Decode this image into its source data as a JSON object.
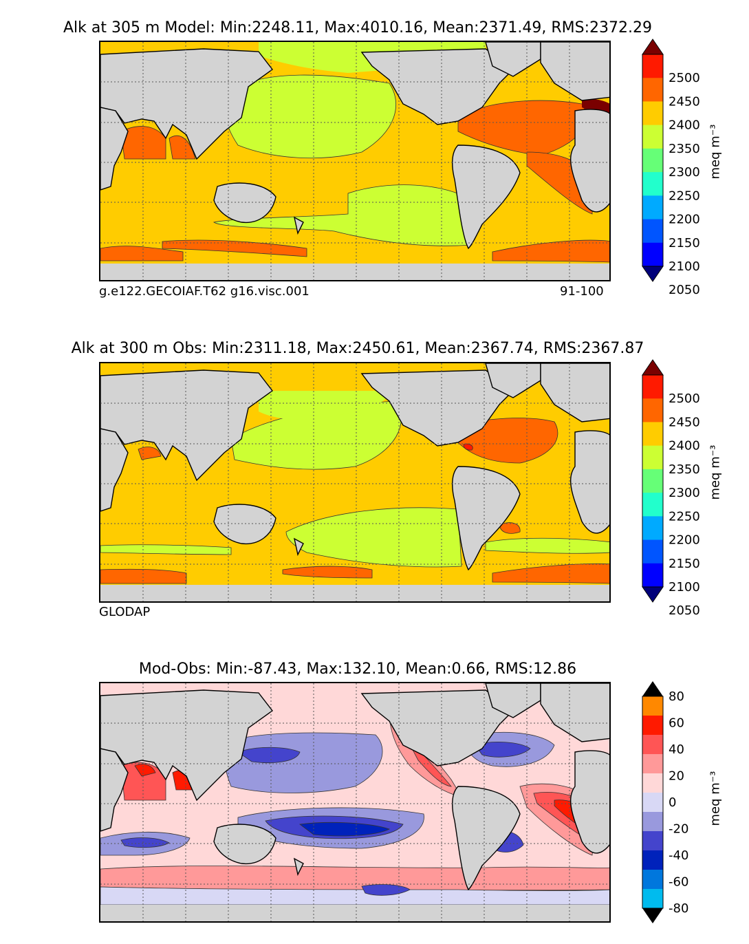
{
  "chart_data": [
    {
      "type": "heatmap",
      "title": "Alk at 305 m Model: Min:2248.11, Max:4010.16, Mean:2371.49, RMS:2372.29",
      "left_note": "g.e122.GECOIAF.T62 g16.visc.001",
      "right_note": "91-100",
      "colorbar": {
        "ticks": [
          "2500",
          "2450",
          "2400",
          "2350",
          "2300",
          "2250",
          "2200",
          "2150",
          "2100",
          "2050"
        ],
        "unit": "meq m⁻³",
        "range": [
          2000,
          2550
        ],
        "colors": [
          "#00007a",
          "#0000ff",
          "#0055ff",
          "#00aaff",
          "#22ffcc",
          "#66ff77",
          "#ccff33",
          "#ffcc00",
          "#ff6600",
          "#ff1a00",
          "#7a0000"
        ]
      },
      "regions": [
        {
          "name": "background",
          "value": 2350
        },
        {
          "name": "north-pacific",
          "value": 2320
        },
        {
          "name": "north-atlantic",
          "value": 2400
        },
        {
          "name": "arabian-sea",
          "value": 2400
        },
        {
          "name": "south-pacific",
          "value": 2320
        },
        {
          "name": "southern-band",
          "value": 2400
        },
        {
          "name": "mediterranean",
          "value": 2500
        }
      ]
    },
    {
      "type": "heatmap",
      "title": "Alk at 300 m Obs: Min:2311.18, Max:2450.61, Mean:2367.74, RMS:2367.87",
      "left_note": "GLODAP",
      "colorbar": {
        "ticks": [
          "2500",
          "2450",
          "2400",
          "2350",
          "2300",
          "2250",
          "2200",
          "2150",
          "2100",
          "2050"
        ],
        "unit": "meq m⁻³",
        "range": [
          2000,
          2550
        ],
        "colors": [
          "#00007a",
          "#0000ff",
          "#0055ff",
          "#00aaff",
          "#22ffcc",
          "#66ff77",
          "#ccff33",
          "#ffcc00",
          "#ff6600",
          "#ff1a00",
          "#7a0000"
        ]
      },
      "regions": [
        {
          "name": "background",
          "value": 2350
        },
        {
          "name": "north-pacific",
          "value": 2320
        },
        {
          "name": "north-atlantic",
          "value": 2400
        },
        {
          "name": "south-pacific",
          "value": 2330
        },
        {
          "name": "southern-band",
          "value": 2400
        }
      ]
    },
    {
      "type": "heatmap",
      "title": "Mod-Obs: Min:-87.43, Max:132.10, Mean:0.66, RMS:12.86",
      "colorbar": {
        "ticks": [
          "80",
          "60",
          "40",
          "20",
          "0",
          "-20",
          "-40",
          "-60",
          "-80"
        ],
        "unit": "meq m⁻³",
        "range": [
          -90,
          90
        ],
        "colors": [
          "#00ffff",
          "#00bbee",
          "#0077dd",
          "#0022bb",
          "#4444cc",
          "#9999dd",
          "#d8d8f5",
          "#ffd8d8",
          "#ff9999",
          "#ff5555",
          "#ff1a00",
          "#ff8800",
          "#ffff00"
        ]
      },
      "regions": [
        {
          "name": "background",
          "value": 5
        },
        {
          "name": "north-pacific",
          "value": -15
        },
        {
          "name": "east-pacific-coast",
          "value": 25
        },
        {
          "name": "arabian-sea",
          "value": 35
        },
        {
          "name": "tropical-pacific",
          "value": -45
        },
        {
          "name": "south-atlantic-east",
          "value": 40
        },
        {
          "name": "north-atlantic",
          "value": -25
        }
      ]
    }
  ]
}
